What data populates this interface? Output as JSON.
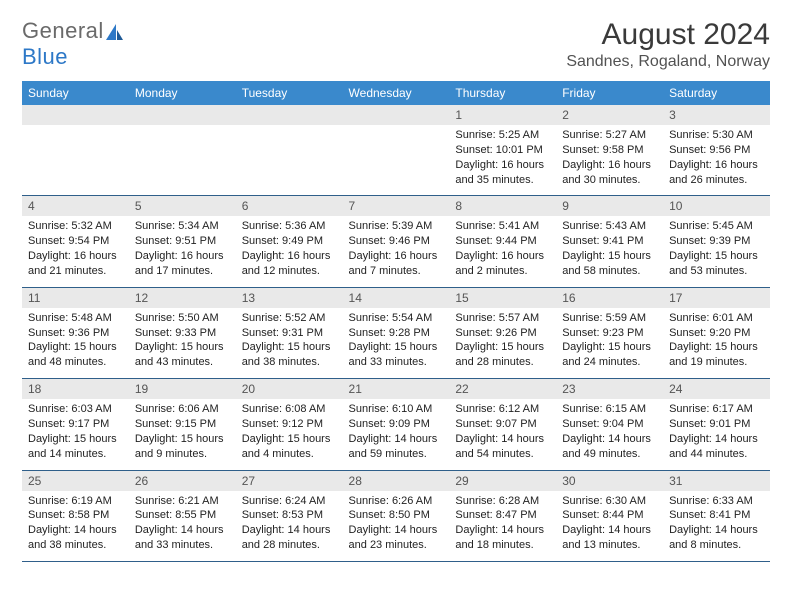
{
  "brand": {
    "name1": "General",
    "name2": "Blue"
  },
  "title": {
    "month": "August 2024",
    "location": "Sandnes, Rogaland, Norway"
  },
  "colors": {
    "header_bg": "#3a89cc",
    "header_fg": "#ffffff",
    "daynum_bg": "#e9e9e9",
    "row_border": "#2f5f8a",
    "brand_gray": "#6a6a6a",
    "brand_blue": "#2d78c7"
  },
  "weekdays": [
    "Sunday",
    "Monday",
    "Tuesday",
    "Wednesday",
    "Thursday",
    "Friday",
    "Saturday"
  ],
  "weeks": [
    [
      {
        "n": "",
        "sunrise": "",
        "sunset": "",
        "daylight": ""
      },
      {
        "n": "",
        "sunrise": "",
        "sunset": "",
        "daylight": ""
      },
      {
        "n": "",
        "sunrise": "",
        "sunset": "",
        "daylight": ""
      },
      {
        "n": "",
        "sunrise": "",
        "sunset": "",
        "daylight": ""
      },
      {
        "n": "1",
        "sunrise": "Sunrise: 5:25 AM",
        "sunset": "Sunset: 10:01 PM",
        "daylight": "Daylight: 16 hours and 35 minutes."
      },
      {
        "n": "2",
        "sunrise": "Sunrise: 5:27 AM",
        "sunset": "Sunset: 9:58 PM",
        "daylight": "Daylight: 16 hours and 30 minutes."
      },
      {
        "n": "3",
        "sunrise": "Sunrise: 5:30 AM",
        "sunset": "Sunset: 9:56 PM",
        "daylight": "Daylight: 16 hours and 26 minutes."
      }
    ],
    [
      {
        "n": "4",
        "sunrise": "Sunrise: 5:32 AM",
        "sunset": "Sunset: 9:54 PM",
        "daylight": "Daylight: 16 hours and 21 minutes."
      },
      {
        "n": "5",
        "sunrise": "Sunrise: 5:34 AM",
        "sunset": "Sunset: 9:51 PM",
        "daylight": "Daylight: 16 hours and 17 minutes."
      },
      {
        "n": "6",
        "sunrise": "Sunrise: 5:36 AM",
        "sunset": "Sunset: 9:49 PM",
        "daylight": "Daylight: 16 hours and 12 minutes."
      },
      {
        "n": "7",
        "sunrise": "Sunrise: 5:39 AM",
        "sunset": "Sunset: 9:46 PM",
        "daylight": "Daylight: 16 hours and 7 minutes."
      },
      {
        "n": "8",
        "sunrise": "Sunrise: 5:41 AM",
        "sunset": "Sunset: 9:44 PM",
        "daylight": "Daylight: 16 hours and 2 minutes."
      },
      {
        "n": "9",
        "sunrise": "Sunrise: 5:43 AM",
        "sunset": "Sunset: 9:41 PM",
        "daylight": "Daylight: 15 hours and 58 minutes."
      },
      {
        "n": "10",
        "sunrise": "Sunrise: 5:45 AM",
        "sunset": "Sunset: 9:39 PM",
        "daylight": "Daylight: 15 hours and 53 minutes."
      }
    ],
    [
      {
        "n": "11",
        "sunrise": "Sunrise: 5:48 AM",
        "sunset": "Sunset: 9:36 PM",
        "daylight": "Daylight: 15 hours and 48 minutes."
      },
      {
        "n": "12",
        "sunrise": "Sunrise: 5:50 AM",
        "sunset": "Sunset: 9:33 PM",
        "daylight": "Daylight: 15 hours and 43 minutes."
      },
      {
        "n": "13",
        "sunrise": "Sunrise: 5:52 AM",
        "sunset": "Sunset: 9:31 PM",
        "daylight": "Daylight: 15 hours and 38 minutes."
      },
      {
        "n": "14",
        "sunrise": "Sunrise: 5:54 AM",
        "sunset": "Sunset: 9:28 PM",
        "daylight": "Daylight: 15 hours and 33 minutes."
      },
      {
        "n": "15",
        "sunrise": "Sunrise: 5:57 AM",
        "sunset": "Sunset: 9:26 PM",
        "daylight": "Daylight: 15 hours and 28 minutes."
      },
      {
        "n": "16",
        "sunrise": "Sunrise: 5:59 AM",
        "sunset": "Sunset: 9:23 PM",
        "daylight": "Daylight: 15 hours and 24 minutes."
      },
      {
        "n": "17",
        "sunrise": "Sunrise: 6:01 AM",
        "sunset": "Sunset: 9:20 PM",
        "daylight": "Daylight: 15 hours and 19 minutes."
      }
    ],
    [
      {
        "n": "18",
        "sunrise": "Sunrise: 6:03 AM",
        "sunset": "Sunset: 9:17 PM",
        "daylight": "Daylight: 15 hours and 14 minutes."
      },
      {
        "n": "19",
        "sunrise": "Sunrise: 6:06 AM",
        "sunset": "Sunset: 9:15 PM",
        "daylight": "Daylight: 15 hours and 9 minutes."
      },
      {
        "n": "20",
        "sunrise": "Sunrise: 6:08 AM",
        "sunset": "Sunset: 9:12 PM",
        "daylight": "Daylight: 15 hours and 4 minutes."
      },
      {
        "n": "21",
        "sunrise": "Sunrise: 6:10 AM",
        "sunset": "Sunset: 9:09 PM",
        "daylight": "Daylight: 14 hours and 59 minutes."
      },
      {
        "n": "22",
        "sunrise": "Sunrise: 6:12 AM",
        "sunset": "Sunset: 9:07 PM",
        "daylight": "Daylight: 14 hours and 54 minutes."
      },
      {
        "n": "23",
        "sunrise": "Sunrise: 6:15 AM",
        "sunset": "Sunset: 9:04 PM",
        "daylight": "Daylight: 14 hours and 49 minutes."
      },
      {
        "n": "24",
        "sunrise": "Sunrise: 6:17 AM",
        "sunset": "Sunset: 9:01 PM",
        "daylight": "Daylight: 14 hours and 44 minutes."
      }
    ],
    [
      {
        "n": "25",
        "sunrise": "Sunrise: 6:19 AM",
        "sunset": "Sunset: 8:58 PM",
        "daylight": "Daylight: 14 hours and 38 minutes."
      },
      {
        "n": "26",
        "sunrise": "Sunrise: 6:21 AM",
        "sunset": "Sunset: 8:55 PM",
        "daylight": "Daylight: 14 hours and 33 minutes."
      },
      {
        "n": "27",
        "sunrise": "Sunrise: 6:24 AM",
        "sunset": "Sunset: 8:53 PM",
        "daylight": "Daylight: 14 hours and 28 minutes."
      },
      {
        "n": "28",
        "sunrise": "Sunrise: 6:26 AM",
        "sunset": "Sunset: 8:50 PM",
        "daylight": "Daylight: 14 hours and 23 minutes."
      },
      {
        "n": "29",
        "sunrise": "Sunrise: 6:28 AM",
        "sunset": "Sunset: 8:47 PM",
        "daylight": "Daylight: 14 hours and 18 minutes."
      },
      {
        "n": "30",
        "sunrise": "Sunrise: 6:30 AM",
        "sunset": "Sunset: 8:44 PM",
        "daylight": "Daylight: 14 hours and 13 minutes."
      },
      {
        "n": "31",
        "sunrise": "Sunrise: 6:33 AM",
        "sunset": "Sunset: 8:41 PM",
        "daylight": "Daylight: 14 hours and 8 minutes."
      }
    ]
  ]
}
